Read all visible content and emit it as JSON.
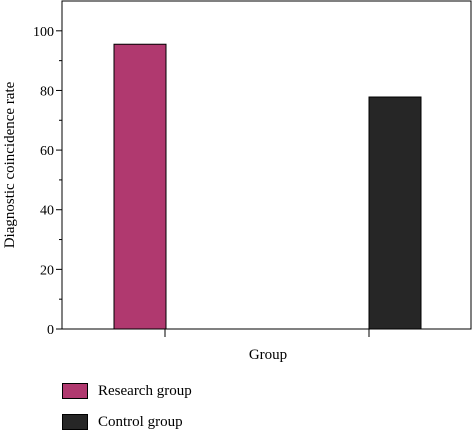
{
  "chart_data": {
    "type": "bar",
    "categories": [
      "Research group",
      "Control group"
    ],
    "values": [
      95.5,
      77.8
    ],
    "colors": [
      "#b0396f",
      "#262626"
    ],
    "xlabel": "Group",
    "ylabel": "Diagnostic coincidence rate",
    "ylim": [
      0,
      110
    ],
    "yticks": [
      "0",
      "20",
      "40",
      "60",
      "80",
      "100"
    ],
    "ytick_values": [
      0,
      20,
      40,
      60,
      80,
      100
    ],
    "grid": false,
    "legend_position": "bottom-left"
  }
}
